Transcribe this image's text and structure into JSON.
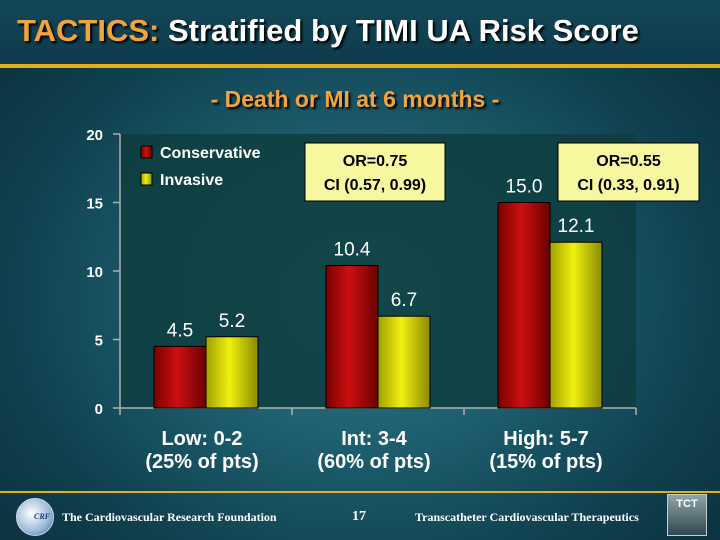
{
  "slide": {
    "title_accent": "TACTICS:",
    "title_rest": " Stratified by TIMI UA Risk Score",
    "subtitle": "- Death or MI at 6 months -",
    "page_number": "17",
    "footer_left": "The Cardiovascular Research Foundation",
    "footer_right": "Transcatheter Cardiovascular Therapeutics",
    "logo_left_text": "CRF",
    "logo_right_text": "TCT"
  },
  "colors": {
    "conservative": "#cc1010",
    "invasive": "#f0f010",
    "title_accent": "#f3a33b",
    "annotation_bg": "#f7f7a0"
  },
  "chart_data": {
    "type": "bar",
    "categories": [
      [
        "Low: 0-2",
        "(25% of pts)"
      ],
      [
        "Int: 3-4",
        "(60% of pts)"
      ],
      [
        "High: 5-7",
        "(15% of pts)"
      ]
    ],
    "series": [
      {
        "name": "Conservative",
        "values": [
          4.5,
          10.4,
          15.0
        ],
        "labels": [
          "4.5",
          "10.4",
          "15.0"
        ]
      },
      {
        "name": "Invasive",
        "values": [
          5.2,
          6.7,
          12.1
        ],
        "labels": [
          "5.2",
          "6.7",
          "12.1"
        ]
      }
    ],
    "ylim": [
      0,
      20
    ],
    "yticks": [
      0,
      5,
      10,
      15,
      20
    ],
    "legend_position": "top-left",
    "annotations": [
      {
        "category_index": 1,
        "lines": [
          "OR=0.75",
          "CI (0.57, 0.99)"
        ]
      },
      {
        "category_index": 2,
        "lines": [
          "OR=0.55",
          "CI (0.33, 0.91)"
        ]
      }
    ]
  }
}
